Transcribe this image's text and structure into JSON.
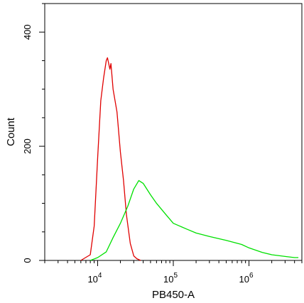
{
  "chart_data": {
    "type": "line",
    "title": "",
    "xlabel": "PB450-A",
    "ylabel": "Count",
    "x_scale": "log",
    "xlim": [
      2000,
      5000000
    ],
    "ylim": [
      0,
      450
    ],
    "grid": false,
    "x_ticks": [
      {
        "value": 10000,
        "base": "10",
        "exp": "4"
      },
      {
        "value": 100000,
        "base": "10",
        "exp": "5"
      },
      {
        "value": 1000000,
        "base": "10",
        "exp": "6"
      }
    ],
    "y_ticks": [
      {
        "value": 0,
        "label": "0"
      },
      {
        "value": 200,
        "label": "200"
      },
      {
        "value": 400,
        "label": "400"
      }
    ],
    "series": [
      {
        "color": "#e00000",
        "x": [
          6000,
          8000,
          9000,
          10000,
          11000,
          12000,
          13000,
          13500,
          14500,
          15000,
          16000,
          18000,
          20000,
          22000,
          24000,
          27000,
          30000,
          33000,
          37000
        ],
        "y": [
          0,
          10,
          60,
          180,
          280,
          320,
          350,
          355,
          335,
          345,
          300,
          260,
          190,
          140,
          80,
          30,
          8,
          3,
          0
        ]
      },
      {
        "color": "#00e000",
        "x": [
          8000,
          10000,
          13000,
          16000,
          20000,
          25000,
          30000,
          35000,
          40000,
          50000,
          60000,
          80000,
          100000,
          150000,
          200000,
          300000,
          500000,
          800000,
          1000000,
          1500000,
          2000000,
          3000000,
          4000000,
          4500000
        ],
        "y": [
          0,
          5,
          15,
          40,
          65,
          95,
          125,
          140,
          135,
          115,
          100,
          80,
          65,
          55,
          48,
          42,
          35,
          28,
          22,
          14,
          10,
          7,
          5,
          5
        ]
      }
    ]
  }
}
